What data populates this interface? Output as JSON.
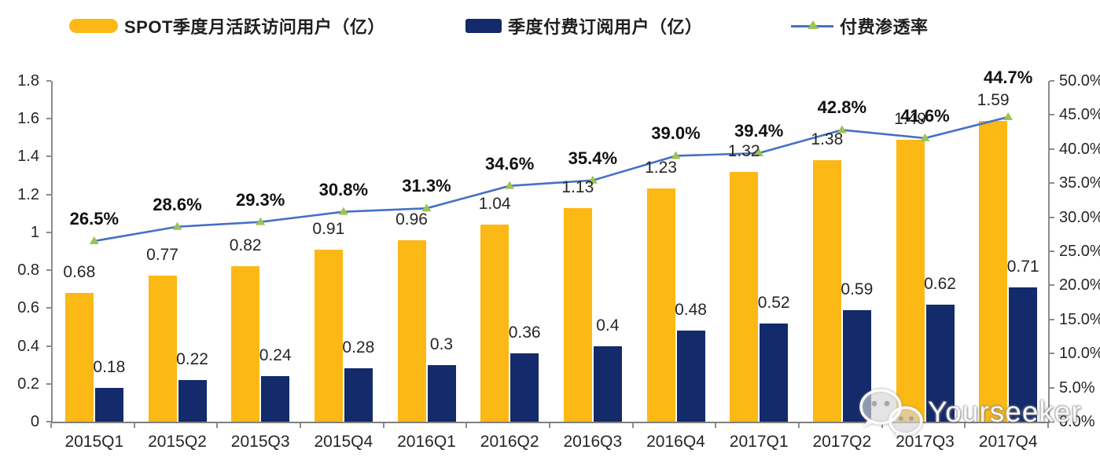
{
  "legend": [
    {
      "label": "SPOT季度月活跃访问用户（亿）",
      "color": "#FCB814",
      "type": "bar"
    },
    {
      "label": "季度付费订阅用户（亿）",
      "color": "#132A6B",
      "type": "bar"
    },
    {
      "label": "付费渗透率",
      "color": "#4472C4",
      "marker_color": "#9CC353",
      "type": "line"
    }
  ],
  "watermark": {
    "text": "Yourseeker",
    "icon": "wechat-icon"
  },
  "chart_data": {
    "type": "bar",
    "subtype": "grouped-bars-with-line",
    "categories": [
      "2015Q1",
      "2015Q2",
      "2015Q3",
      "2015Q4",
      "2016Q1",
      "2016Q2",
      "2016Q3",
      "2016Q4",
      "2017Q1",
      "2017Q2",
      "2017Q3",
      "2017Q4"
    ],
    "series": [
      {
        "name": "SPOT季度月活跃访问用户（亿）",
        "type": "bar",
        "axis": "left",
        "color": "#FCB814",
        "values": [
          0.68,
          0.77,
          0.82,
          0.91,
          0.96,
          1.04,
          1.13,
          1.23,
          1.32,
          1.38,
          1.49,
          1.59
        ],
        "labels": [
          "0.68",
          "0.77",
          "0.82",
          "0.91",
          "0.96",
          "1.04",
          "1.13",
          "1.23",
          "1.32",
          "1.38",
          "1.49",
          "1.59"
        ]
      },
      {
        "name": "季度付费订阅用户（亿）",
        "type": "bar",
        "axis": "left",
        "color": "#132A6B",
        "values": [
          0.18,
          0.22,
          0.24,
          0.28,
          0.3,
          0.36,
          0.4,
          0.48,
          0.52,
          0.59,
          0.62,
          0.71
        ],
        "labels": [
          "0.18",
          "0.22",
          "0.24",
          "0.28",
          "0.3",
          "0.36",
          "0.4",
          "0.48",
          "0.52",
          "0.59",
          "0.62",
          "0.71"
        ]
      },
      {
        "name": "付费渗透率",
        "type": "line",
        "axis": "right",
        "color": "#4472C4",
        "marker": "triangle-up",
        "marker_color": "#9CC353",
        "values": [
          26.5,
          28.6,
          29.3,
          30.8,
          31.3,
          34.6,
          35.4,
          39.0,
          39.4,
          42.8,
          41.6,
          44.7
        ],
        "labels": [
          "26.5%",
          "28.6%",
          "29.3%",
          "30.8%",
          "31.3%",
          "34.6%",
          "35.4%",
          "39.0%",
          "39.4%",
          "42.8%",
          "41.6%",
          "44.7%"
        ]
      }
    ],
    "left_axis": {
      "min": 0,
      "max": 1.8,
      "step": 0.2,
      "ticks": [
        "0",
        "0.2",
        "0.4",
        "0.6",
        "0.8",
        "1",
        "1.2",
        "1.4",
        "1.6",
        "1.8"
      ]
    },
    "right_axis": {
      "min": 0,
      "max": 50,
      "step": 5,
      "unit": "%",
      "ticks": [
        "0.0%",
        "5.0%",
        "10.0%",
        "15.0%",
        "20.0%",
        "25.0%",
        "30.0%",
        "35.0%",
        "40.0%",
        "45.0%",
        "50.0%"
      ]
    },
    "grid": false,
    "legend_position": "top",
    "axis_color": "#8c8c8c"
  }
}
